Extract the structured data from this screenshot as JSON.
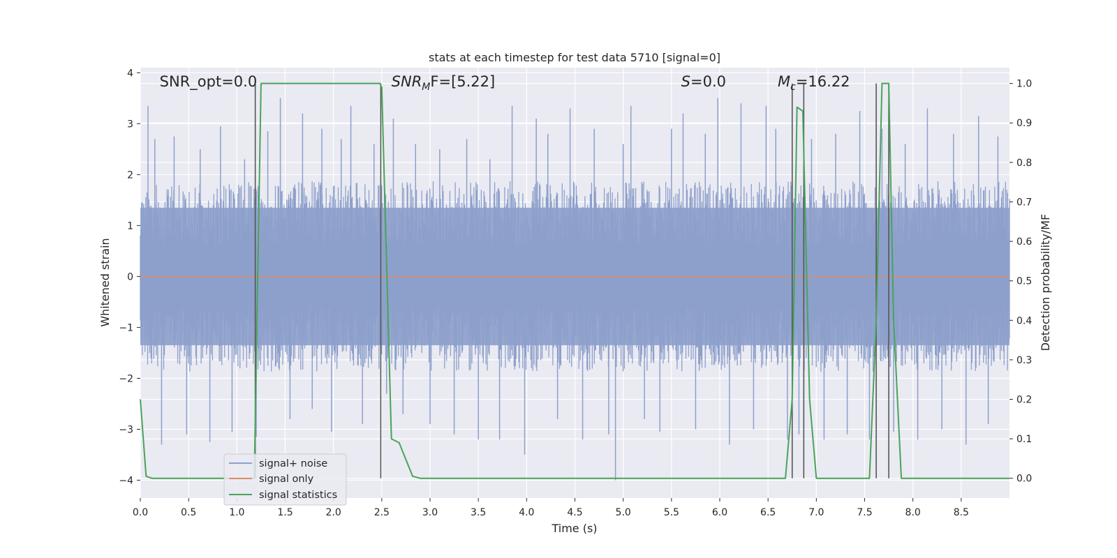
{
  "chart_data": {
    "type": "line",
    "title": "stats at each timestep for test data 5710 [signal=0]",
    "xlabel": "Time (s)",
    "ylabel": "Whitened strain",
    "y2label": "Detection probability/MF",
    "xlim": [
      0,
      9.0
    ],
    "ylim": [
      -4.35,
      4.1
    ],
    "y2lim": [
      -0.05,
      1.04
    ],
    "x_ticks": [
      0.0,
      0.5,
      1.0,
      1.5,
      2.0,
      2.5,
      3.0,
      3.5,
      4.0,
      4.5,
      5.0,
      5.5,
      6.0,
      6.5,
      7.0,
      7.5,
      8.0,
      8.5
    ],
    "x_tick_labels": [
      "0.0",
      "0.5",
      "1.0",
      "1.5",
      "2.0",
      "2.5",
      "3.0",
      "3.5",
      "4.0",
      "4.5",
      "5.0",
      "5.5",
      "6.0",
      "6.5",
      "7.0",
      "7.5",
      "8.0",
      "8.5"
    ],
    "y_ticks": [
      4,
      3,
      2,
      1,
      0,
      -1,
      -2,
      -3,
      -4
    ],
    "y_tick_labels": [
      "4",
      "3",
      "2",
      "1",
      "0",
      "−1",
      "−2",
      "−3",
      "−4"
    ],
    "y2_ticks": [
      1.0,
      0.9,
      0.8,
      0.7,
      0.6,
      0.5,
      0.4,
      0.3,
      0.2,
      0.1,
      0.0
    ],
    "y2_tick_labels": [
      "1.0",
      "0.9",
      "0.8",
      "0.7",
      "0.6",
      "0.5",
      "0.4",
      "0.3",
      "0.2",
      "0.1",
      "0.0"
    ],
    "grid": true,
    "legend_placement": "lower-left",
    "legend": [
      {
        "name": "signal+ noise",
        "color": "#8da0cb"
      },
      {
        "name": "signal only",
        "color": "#e08c6a"
      },
      {
        "name": "signal statistics",
        "color": "#4aa35a"
      }
    ],
    "annotations": [
      {
        "x": 0.2,
        "text": "SNR_opt=0.0",
        "italic_prefix": "",
        "sub": "",
        "rest": ""
      },
      {
        "x": 2.6,
        "text": "",
        "italic_prefix": "SNR",
        "sub": "M",
        "rest": "F=[5.22]"
      },
      {
        "x": 5.6,
        "text": "",
        "italic_prefix": "S",
        "sub": "",
        "rest": "=0.0"
      },
      {
        "x": 6.6,
        "text": "",
        "italic_prefix": "M",
        "sub": "c",
        "rest": "=16.22"
      }
    ],
    "noise_series": {
      "name": "signal+ noise",
      "color": "#8da0cb",
      "envelope_upper": 1.7,
      "envelope_lower": -1.7,
      "spikes": [
        [
          0.08,
          3.35
        ],
        [
          0.15,
          2.7
        ],
        [
          0.22,
          -3.3
        ],
        [
          0.35,
          2.75
        ],
        [
          0.48,
          -3.1
        ],
        [
          0.62,
          2.5
        ],
        [
          0.72,
          -3.25
        ],
        [
          0.83,
          2.95
        ],
        [
          0.95,
          -3.05
        ],
        [
          1.08,
          2.3
        ],
        [
          1.2,
          -3.15
        ],
        [
          1.32,
          2.85
        ],
        [
          1.45,
          3.5
        ],
        [
          1.55,
          -2.8
        ],
        [
          1.68,
          3.2
        ],
        [
          1.78,
          -2.6
        ],
        [
          1.88,
          2.9
        ],
        [
          1.98,
          -3.05
        ],
        [
          2.08,
          2.7
        ],
        [
          2.18,
          3.35
        ],
        [
          2.3,
          -2.9
        ],
        [
          2.42,
          2.6
        ],
        [
          2.55,
          -2.3
        ],
        [
          2.62,
          3.1
        ],
        [
          2.72,
          -2.7
        ],
        [
          2.85,
          2.6
        ],
        [
          3.0,
          -2.9
        ],
        [
          3.1,
          2.5
        ],
        [
          3.25,
          -3.1
        ],
        [
          3.38,
          2.7
        ],
        [
          3.5,
          -3.2
        ],
        [
          3.62,
          2.3
        ],
        [
          3.72,
          -3.2
        ],
        [
          3.85,
          3.35
        ],
        [
          3.98,
          -3.5
        ],
        [
          4.1,
          3.1
        ],
        [
          4.22,
          2.8
        ],
        [
          4.32,
          -2.8
        ],
        [
          4.45,
          3.3
        ],
        [
          4.58,
          -3.2
        ],
        [
          4.7,
          2.9
        ],
        [
          4.85,
          -3.1
        ],
        [
          4.92,
          -4.0
        ],
        [
          5.0,
          2.6
        ],
        [
          5.08,
          3.35
        ],
        [
          5.22,
          -2.8
        ],
        [
          5.38,
          -3.05
        ],
        [
          5.5,
          2.9
        ],
        [
          5.62,
          3.2
        ],
        [
          5.75,
          -3.0
        ],
        [
          5.85,
          2.8
        ],
        [
          5.98,
          3.5
        ],
        [
          6.1,
          -3.3
        ],
        [
          6.22,
          3.4
        ],
        [
          6.35,
          -3.0
        ],
        [
          6.48,
          3.35
        ],
        [
          6.58,
          2.9
        ],
        [
          6.7,
          -3.2
        ],
        [
          6.82,
          -3.1
        ],
        [
          6.95,
          2.7
        ],
        [
          7.08,
          -3.2
        ],
        [
          7.2,
          2.8
        ],
        [
          7.32,
          -3.1
        ],
        [
          7.45,
          3.25
        ],
        [
          7.55,
          -3.2
        ],
        [
          7.68,
          2.9
        ],
        [
          7.8,
          -3.05
        ],
        [
          7.92,
          2.6
        ],
        [
          8.05,
          -3.2
        ],
        [
          8.15,
          3.3
        ],
        [
          8.3,
          -3.0
        ],
        [
          8.42,
          2.8
        ],
        [
          8.55,
          -3.3
        ],
        [
          8.68,
          3.15
        ],
        [
          8.78,
          -2.9
        ],
        [
          8.88,
          2.75
        ]
      ]
    },
    "signal_only_series": {
      "name": "signal only",
      "color": "#e08c6a",
      "x": [
        0.0,
        9.0
      ],
      "y": [
        0.0,
        0.0
      ]
    },
    "stat_series": {
      "name": "signal statistics",
      "color": "#4aa35a",
      "x": [
        0.0,
        0.06,
        0.12,
        1.18,
        1.25,
        2.48,
        2.5,
        2.6,
        2.68,
        2.82,
        2.9,
        6.68,
        6.75,
        6.8,
        6.86,
        6.93,
        7.0,
        7.08,
        7.55,
        7.62,
        7.68,
        7.75,
        7.8,
        7.88,
        9.0
      ],
      "y": [
        0.2,
        0.005,
        0.0,
        0.0,
        1.0,
        1.0,
        0.99,
        0.1,
        0.09,
        0.005,
        0.0,
        0.0,
        0.2,
        0.94,
        0.93,
        0.2,
        0.0,
        0.0,
        0.0,
        0.4,
        1.0,
        1.0,
        0.4,
        0.0,
        0.0
      ]
    },
    "vertical_markers": [
      {
        "x": 1.19,
        "y_top": 1.0,
        "y_bottom": 0.0
      },
      {
        "x": 2.49,
        "y_top": 1.0,
        "y_bottom": 0.0
      },
      {
        "x": 6.75,
        "y_top": 1.0,
        "y_bottom": 0.0
      },
      {
        "x": 6.87,
        "y_top": 1.0,
        "y_bottom": 0.0
      },
      {
        "x": 7.62,
        "y_top": 1.0,
        "y_bottom": 0.0
      },
      {
        "x": 7.75,
        "y_top": 1.0,
        "y_bottom": 0.0
      }
    ]
  }
}
